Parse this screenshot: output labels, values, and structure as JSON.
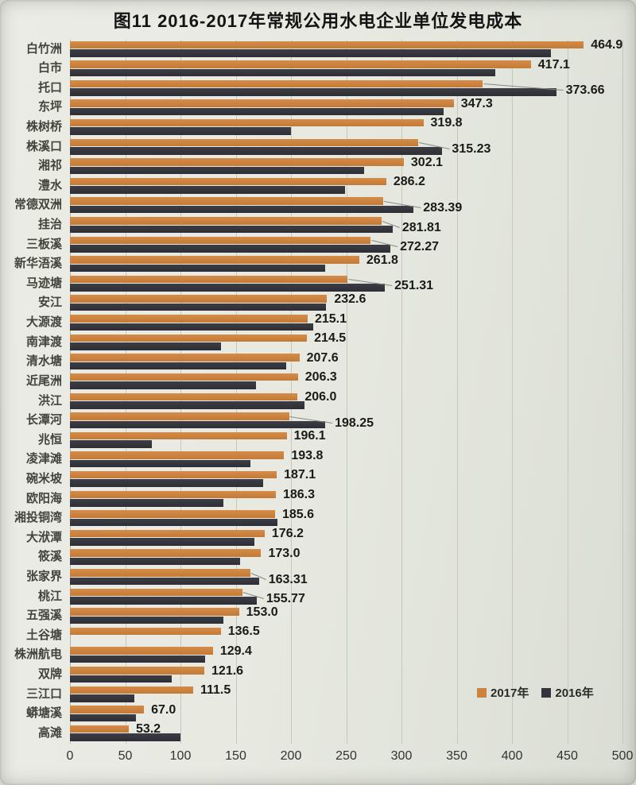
{
  "page": {
    "title": "图11 2016-2017年常规公用水电企业单位发电成本"
  },
  "chart_data": {
    "type": "bar",
    "orientation": "horizontal-grouped",
    "title": "图11 2016-2017年常规公用水电企业单位发电成本",
    "xlabel": "",
    "ylabel": "",
    "xlim": [
      0,
      500
    ],
    "xticks": [
      0,
      50,
      100,
      150,
      200,
      250,
      300,
      350,
      400,
      450,
      500
    ],
    "grid": true,
    "legend_position": "inside-bottom-right",
    "categories": [
      "白竹洲",
      "白市",
      "托口",
      "东坪",
      "株树桥",
      "株溪口",
      "湘祁",
      "澧水",
      "常德双洲",
      "挂治",
      "三板溪",
      "新华浯溪",
      "马迹塘",
      "安江",
      "大源渡",
      "南津渡",
      "清水塘",
      "近尾洲",
      "洪江",
      "长潭河",
      "兆恒",
      "凌津滩",
      "碗米坡",
      "欧阳海",
      "湘投铜湾",
      "大洑潭",
      "筱溪",
      "张家界",
      "桃江",
      "五强溪",
      "土谷塘",
      "株洲航电",
      "双牌",
      "三江口",
      "蟒塘溪",
      "高滩"
    ],
    "series": [
      {
        "name": "2017年",
        "color": "#cd8340",
        "values": [
          464.9,
          417.1,
          373.66,
          347.3,
          319.8,
          315.23,
          302.1,
          286.2,
          283.39,
          281.81,
          272.27,
          261.8,
          251.31,
          232.6,
          215.1,
          214.5,
          207.6,
          206.3,
          206.0,
          198.25,
          196.1,
          193.8,
          187.1,
          186.3,
          185.6,
          176.2,
          173.0,
          163.31,
          155.77,
          153.0,
          136.5,
          129.4,
          121.6,
          111.5,
          67.0,
          53.2
        ],
        "data_labels": [
          "464.9",
          "417.1",
          "373.66",
          "347.3",
          "319.8",
          "315.23",
          "302.1",
          "286.2",
          "283.39",
          "281.81",
          "272.27",
          "261.8",
          "251.31",
          "232.6",
          "215.1",
          "214.5",
          "207.6",
          "206.3",
          "206.0",
          "198.25",
          "196.1",
          "193.8",
          "187.1",
          "186.3",
          "185.6",
          "176.2",
          "173.0",
          "163.31",
          "155.77",
          "153.0",
          "136.5",
          "129.4",
          "121.6",
          "111.5",
          "67.0",
          "53.2"
        ]
      },
      {
        "name": "2016年",
        "color": "#34343c",
        "values_estimated_from_bar_lengths": true,
        "values": [
          435,
          385,
          440,
          338,
          200,
          337,
          266,
          249,
          311,
          292,
          290,
          231,
          285,
          232,
          220,
          137,
          196,
          168,
          212,
          231,
          74,
          163,
          175,
          139,
          188,
          167,
          154,
          171,
          169,
          139,
          null,
          122,
          92,
          58,
          60,
          100
        ]
      }
    ],
    "label_leader_indices": [
      2,
      5,
      8,
      9,
      10,
      12,
      19,
      27,
      28
    ]
  },
  "legend": {
    "items": [
      {
        "label": "2017年",
        "color": "#cd8340"
      },
      {
        "label": "2016年",
        "color": "#34343c"
      }
    ]
  }
}
